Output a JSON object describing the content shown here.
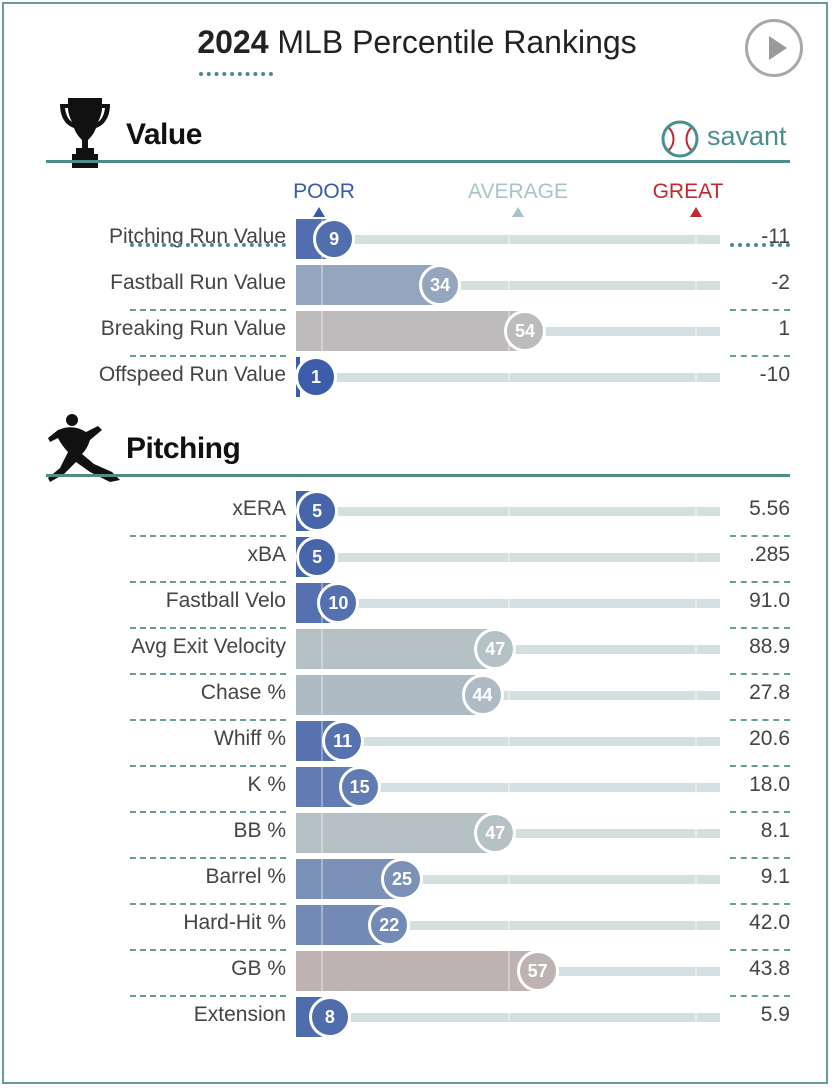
{
  "header": {
    "title_bold": "2024",
    "title_rest": " MLB Percentile Rankings"
  },
  "controls": {
    "play_icon": "play-icon"
  },
  "brand": {
    "name": "savant",
    "icon": "baseball-icon",
    "color": "#4a8f8f"
  },
  "axis": {
    "poor": "POOR",
    "average": "AVERAGE",
    "great": "GREAT",
    "poor_color": "#3a5aa8",
    "average_color": "#a8c4c8",
    "great_color": "#c0282e"
  },
  "chart_data": {
    "type": "bar",
    "xlim": [
      0,
      100
    ],
    "sections": [
      {
        "name": "Value",
        "icon": "trophy-icon",
        "metrics": [
          {
            "label": "Pitching Run Value",
            "percentile": 9,
            "value": "-11"
          },
          {
            "label": "Fastball Run Value",
            "percentile": 34,
            "value": "-2"
          },
          {
            "label": "Breaking Run Value",
            "percentile": 54,
            "value": "1"
          },
          {
            "label": "Offspeed Run Value",
            "percentile": 1,
            "value": "-10"
          }
        ]
      },
      {
        "name": "Pitching",
        "icon": "pitcher-icon",
        "metrics": [
          {
            "label": "xERA",
            "percentile": 5,
            "value": "5.56"
          },
          {
            "label": "xBA",
            "percentile": 5,
            "value": ".285"
          },
          {
            "label": "Fastball Velo",
            "percentile": 10,
            "value": "91.0"
          },
          {
            "label": "Avg Exit Velocity",
            "percentile": 47,
            "value": "88.9"
          },
          {
            "label": "Chase %",
            "percentile": 44,
            "value": "27.8"
          },
          {
            "label": "Whiff %",
            "percentile": 11,
            "value": "20.6"
          },
          {
            "label": "K %",
            "percentile": 15,
            "value": "18.0"
          },
          {
            "label": "BB %",
            "percentile": 47,
            "value": "8.1"
          },
          {
            "label": "Barrel %",
            "percentile": 25,
            "value": "9.1"
          },
          {
            "label": "Hard-Hit %",
            "percentile": 22,
            "value": "42.0"
          },
          {
            "label": "GB %",
            "percentile": 57,
            "value": "43.8"
          },
          {
            "label": "Extension",
            "percentile": 8,
            "value": "5.9"
          }
        ]
      }
    ]
  }
}
